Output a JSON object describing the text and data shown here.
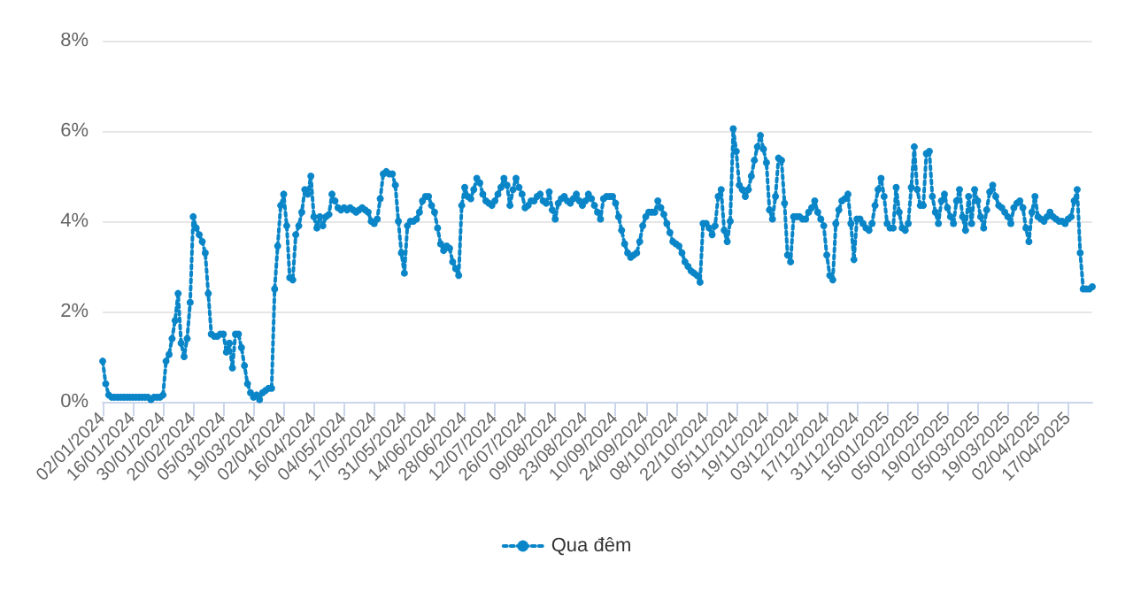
{
  "chart_data": {
    "type": "line",
    "categories": [
      "02/01/2024",
      null,
      null,
      null,
      null,
      null,
      null,
      null,
      null,
      null,
      "16/01/2024",
      null,
      null,
      null,
      null,
      null,
      null,
      null,
      null,
      null,
      "30/01/2024",
      null,
      null,
      null,
      null,
      null,
      null,
      null,
      null,
      null,
      "20/02/2024",
      null,
      null,
      null,
      null,
      null,
      null,
      null,
      null,
      null,
      "05/03/2024",
      null,
      null,
      null,
      null,
      null,
      null,
      null,
      null,
      null,
      "19/03/2024",
      null,
      null,
      null,
      null,
      null,
      null,
      null,
      null,
      null,
      "02/04/2024",
      null,
      null,
      null,
      null,
      null,
      null,
      null,
      null,
      null,
      "16/04/2024",
      null,
      null,
      null,
      null,
      null,
      null,
      null,
      null,
      null,
      "04/05/2024",
      null,
      null,
      null,
      null,
      null,
      null,
      null,
      null,
      null,
      "17/05/2024",
      null,
      null,
      null,
      null,
      null,
      null,
      null,
      null,
      null,
      "31/05/2024",
      null,
      null,
      null,
      null,
      null,
      null,
      null,
      null,
      null,
      "14/06/2024",
      null,
      null,
      null,
      null,
      null,
      null,
      null,
      null,
      null,
      "28/06/2024",
      null,
      null,
      null,
      null,
      null,
      null,
      null,
      null,
      null,
      "12/07/2024",
      null,
      null,
      null,
      null,
      null,
      null,
      null,
      null,
      null,
      "26/07/2024",
      null,
      null,
      null,
      null,
      null,
      null,
      null,
      null,
      null,
      "09/08/2024",
      null,
      null,
      null,
      null,
      null,
      null,
      null,
      null,
      null,
      "23/08/2024",
      null,
      null,
      null,
      null,
      null,
      null,
      null,
      null,
      null,
      "10/09/2024",
      null,
      null,
      null,
      null,
      null,
      null,
      null,
      null,
      null,
      "24/09/2024",
      null,
      null,
      null,
      null,
      null,
      null,
      null,
      null,
      null,
      "08/10/2024",
      null,
      null,
      null,
      null,
      null,
      null,
      null,
      null,
      null,
      "22/10/2024",
      null,
      null,
      null,
      null,
      null,
      null,
      null,
      null,
      null,
      "05/11/2024",
      null,
      null,
      null,
      null,
      null,
      null,
      null,
      null,
      null,
      "19/11/2024",
      null,
      null,
      null,
      null,
      null,
      null,
      null,
      null,
      null,
      "03/12/2024",
      null,
      null,
      null,
      null,
      null,
      null,
      null,
      null,
      null,
      "17/12/2024",
      null,
      null,
      null,
      null,
      null,
      null,
      null,
      null,
      null,
      "31/12/2024",
      null,
      null,
      null,
      null,
      null,
      null,
      null,
      null,
      null,
      "15/01/2025",
      null,
      null,
      null,
      null,
      null,
      null,
      null,
      null,
      null,
      "05/02/2025",
      null,
      null,
      null,
      null,
      null,
      null,
      null,
      null,
      null,
      "19/02/2025",
      null,
      null,
      null,
      null,
      null,
      null,
      null,
      null,
      null,
      "05/03/2025",
      null,
      null,
      null,
      null,
      null,
      null,
      null,
      null,
      null,
      "19/03/2025",
      null,
      null,
      null,
      null,
      null,
      null,
      null,
      null,
      null,
      "02/04/2025",
      null,
      null,
      null,
      null,
      null,
      null,
      null,
      null,
      null,
      "17/04/2025",
      null,
      null,
      null,
      null,
      null,
      null,
      null,
      null
    ],
    "series": [
      {
        "name": "Qua đêm",
        "color": "#0a86c8",
        "values": [
          0.9,
          0.4,
          0.15,
          0.1,
          0.1,
          0.1,
          0.1,
          0.1,
          0.1,
          0.1,
          0.1,
          0.1,
          0.1,
          0.1,
          0.1,
          0.1,
          0.05,
          0.1,
          0.1,
          0.1,
          0.15,
          0.9,
          1.05,
          1.4,
          1.8,
          2.4,
          1.3,
          1.0,
          1.4,
          2.2,
          4.1,
          3.85,
          3.7,
          3.55,
          3.3,
          2.4,
          1.5,
          1.45,
          1.45,
          1.5,
          1.5,
          1.1,
          1.3,
          0.75,
          1.5,
          1.5,
          1.2,
          0.8,
          0.4,
          0.2,
          0.1,
          0.15,
          0.05,
          0.2,
          0.25,
          0.3,
          0.3,
          2.5,
          3.45,
          4.35,
          4.6,
          3.9,
          2.75,
          2.7,
          3.7,
          3.9,
          4.2,
          4.7,
          4.6,
          5.0,
          4.1,
          3.85,
          4.1,
          3.9,
          4.1,
          4.15,
          4.6,
          4.45,
          4.3,
          4.25,
          4.3,
          4.25,
          4.3,
          4.25,
          4.2,
          4.25,
          4.3,
          4.25,
          4.2,
          4.0,
          3.95,
          4.05,
          4.5,
          5.05,
          5.1,
          5.05,
          5.05,
          4.8,
          4.0,
          3.3,
          2.85,
          3.9,
          4.0,
          4.0,
          4.05,
          4.2,
          4.45,
          4.55,
          4.55,
          4.35,
          4.2,
          3.85,
          3.5,
          3.35,
          3.45,
          3.4,
          3.1,
          2.95,
          2.8,
          4.35,
          4.75,
          4.55,
          4.5,
          4.7,
          4.95,
          4.85,
          4.6,
          4.45,
          4.4,
          4.35,
          4.45,
          4.6,
          4.75,
          4.95,
          4.8,
          4.35,
          4.7,
          4.95,
          4.75,
          4.6,
          4.3,
          4.35,
          4.45,
          4.45,
          4.55,
          4.6,
          4.45,
          4.4,
          4.65,
          4.25,
          4.05,
          4.4,
          4.5,
          4.55,
          4.45,
          4.4,
          4.5,
          4.6,
          4.45,
          4.35,
          4.45,
          4.6,
          4.5,
          4.35,
          4.2,
          4.05,
          4.5,
          4.55,
          4.55,
          4.55,
          4.4,
          4.1,
          3.8,
          3.5,
          3.3,
          3.2,
          3.25,
          3.3,
          3.55,
          3.9,
          4.1,
          4.2,
          4.2,
          4.2,
          4.45,
          4.3,
          4.15,
          3.95,
          3.75,
          3.55,
          3.5,
          3.45,
          3.3,
          3.1,
          3.0,
          2.9,
          2.85,
          2.8,
          2.65,
          3.95,
          3.95,
          3.85,
          3.7,
          3.9,
          4.55,
          4.7,
          3.8,
          3.55,
          4.0,
          6.05,
          5.55,
          4.8,
          4.7,
          4.55,
          4.7,
          5.0,
          5.35,
          5.65,
          5.9,
          5.6,
          5.3,
          4.25,
          4.05,
          4.55,
          5.4,
          5.35,
          4.4,
          3.25,
          3.1,
          4.1,
          4.1,
          4.1,
          4.05,
          4.05,
          4.2,
          4.3,
          4.45,
          4.2,
          4.05,
          3.9,
          3.25,
          2.8,
          2.7,
          3.95,
          4.25,
          4.45,
          4.5,
          4.6,
          3.95,
          3.15,
          4.05,
          4.05,
          3.95,
          3.85,
          3.8,
          3.95,
          4.35,
          4.7,
          4.95,
          4.55,
          3.95,
          3.85,
          3.85,
          4.75,
          4.2,
          3.85,
          3.8,
          3.95,
          4.75,
          5.65,
          4.7,
          4.35,
          4.35,
          5.5,
          5.55,
          4.55,
          4.2,
          3.95,
          4.45,
          4.6,
          4.3,
          4.1,
          3.95,
          4.45,
          4.7,
          4.1,
          3.8,
          4.55,
          3.95,
          4.7,
          4.45,
          4.1,
          3.85,
          4.25,
          4.65,
          4.8,
          4.55,
          4.35,
          4.3,
          4.2,
          4.1,
          3.95,
          4.3,
          4.4,
          4.45,
          4.3,
          3.85,
          3.55,
          4.2,
          4.55,
          4.1,
          4.05,
          4.0,
          4.1,
          4.2,
          4.1,
          4.05,
          4.0,
          4.0,
          3.95,
          4.05,
          4.1,
          4.45,
          4.7,
          3.3,
          2.5,
          2.5,
          2.5,
          2.55
        ]
      }
    ],
    "ylim": [
      0,
      8
    ],
    "yticks": [
      {
        "value": 0,
        "label": "0%"
      },
      {
        "value": 2,
        "label": "2%"
      },
      {
        "value": 4,
        "label": "4%"
      },
      {
        "value": 6,
        "label": "6%"
      },
      {
        "value": 8,
        "label": "8%"
      }
    ],
    "grid": "y",
    "legend": "bottom",
    "marker": "circle",
    "line_style": "dotted"
  }
}
